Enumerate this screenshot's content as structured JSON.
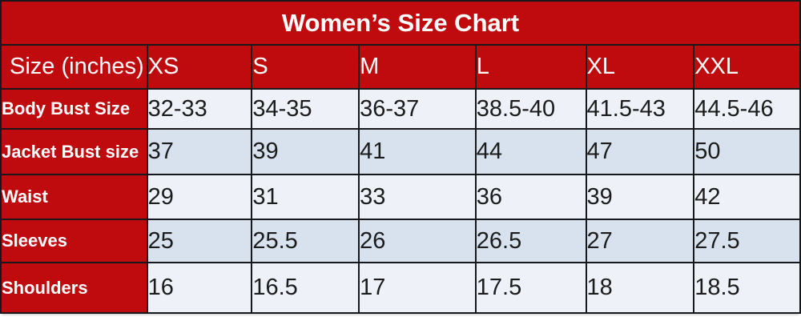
{
  "title": "Women’s Size Chart",
  "chart_data": {
    "type": "table",
    "title": "Women’s Size Chart",
    "columns": [
      "Size (inches)",
      "XS",
      "S",
      "M",
      "L",
      "XL",
      "XXL"
    ],
    "rows": [
      [
        "Body Bust Size",
        "32-33",
        "34-35",
        "36-37",
        "38.5-40",
        "41.5-43",
        "44.5-46"
      ],
      [
        "Jacket Bust size",
        "37",
        "39",
        "41",
        "44",
        "47",
        "50"
      ],
      [
        "Waist",
        "29",
        "31",
        "33",
        "36",
        "39",
        "42"
      ],
      [
        "Sleeves",
        "25",
        "25.5",
        "26",
        "26.5",
        "27",
        "27.5"
      ],
      [
        "Shoulders",
        "16",
        "16.5",
        "17",
        "17.5",
        "18",
        "18.5"
      ]
    ],
    "layout": {
      "column_width_percents": [
        18.3,
        13.1,
        13.4,
        14.6,
        13.8,
        13.5,
        13.3
      ],
      "row_banding": [
        "light",
        "shaded",
        "light",
        "shaded",
        "light"
      ]
    }
  },
  "colors": {
    "header_red": "#c00b0e",
    "row_light": "#eef1f8",
    "row_shaded": "#d8e1ee",
    "grid_border": "#17181c",
    "text_light": "#ffffff",
    "text_dark": "#1c1c1c"
  }
}
